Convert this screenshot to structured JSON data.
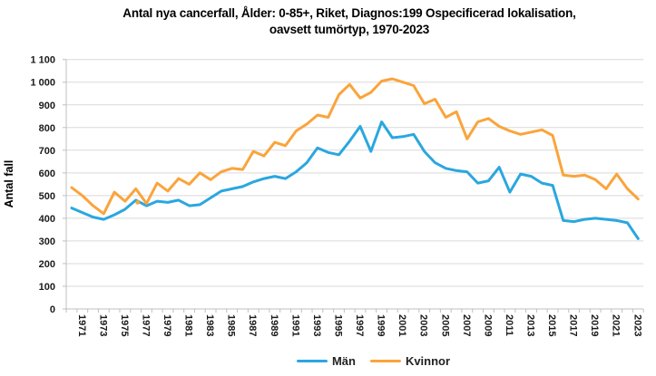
{
  "title": {
    "line1": "Antal nya cancerfall, Ålder: 0-85+, Riket, Diagnos:199 Ospecificerad lokalisation,",
    "line2": "oavsett tumörtyp, 1970-2023"
  },
  "y_axis": {
    "title": "Antal fall",
    "ticks": [
      "0",
      "100",
      "200",
      "300",
      "400",
      "500",
      "600",
      "700",
      "800",
      "900",
      "1 000",
      "1 100"
    ],
    "min": 0,
    "max": 1100,
    "step": 100
  },
  "x_axis": {
    "tick_labels": [
      "1971",
      "1973",
      "1975",
      "1977",
      "1979",
      "1981",
      "1983",
      "1985",
      "1987",
      "1989",
      "1991",
      "1993",
      "1995",
      "1997",
      "1999",
      "2001",
      "2003",
      "2005",
      "2007",
      "2009",
      "2011",
      "2013",
      "2015",
      "2017",
      "2019",
      "2021",
      "2023"
    ]
  },
  "legend": {
    "items": [
      {
        "label": "Män",
        "color": "#2AA7DF"
      },
      {
        "label": "Kvinnor",
        "color": "#FAA43B"
      }
    ],
    "position": "bottom"
  },
  "colors": {
    "man_line": "#2AA7DF",
    "kvinnor_line": "#FAA43B",
    "gridline": "#D9D9D9",
    "axis": "#BFBFBF",
    "text": "#1a1a1a"
  },
  "annotations": {
    "stray_marker": {
      "series": "Kvinnor",
      "year": 1976,
      "value": 470,
      "color": "#FAA43B"
    }
  },
  "chart_data": {
    "type": "line",
    "title": "Antal nya cancerfall, Ålder: 0-85+, Riket, Diagnos:199 Ospecificerad lokalisation, oavsett tumörtyp, 1970-2023",
    "xlabel": "",
    "ylabel": "Antal fall",
    "ylim": [
      0,
      1100
    ],
    "grid": true,
    "legend_position": "bottom",
    "x": [
      1970,
      1971,
      1972,
      1973,
      1974,
      1975,
      1976,
      1977,
      1978,
      1979,
      1980,
      1981,
      1982,
      1983,
      1984,
      1985,
      1986,
      1987,
      1988,
      1989,
      1990,
      1991,
      1992,
      1993,
      1994,
      1995,
      1996,
      1997,
      1998,
      1999,
      2000,
      2001,
      2002,
      2003,
      2004,
      2005,
      2006,
      2007,
      2008,
      2009,
      2010,
      2011,
      2012,
      2013,
      2014,
      2015,
      2016,
      2017,
      2018,
      2019,
      2020,
      2021,
      2022,
      2023
    ],
    "series": [
      {
        "name": "Män",
        "color": "#2AA7DF",
        "values": [
          445,
          425,
          405,
          395,
          415,
          440,
          480,
          455,
          475,
          470,
          480,
          455,
          460,
          490,
          520,
          530,
          540,
          560,
          575,
          585,
          575,
          605,
          645,
          710,
          690,
          680,
          740,
          805,
          695,
          825,
          755,
          760,
          770,
          695,
          645,
          620,
          610,
          605,
          555,
          565,
          625,
          515,
          595,
          585,
          555,
          545,
          390,
          385,
          395,
          400,
          395,
          390,
          380,
          310
        ]
      },
      {
        "name": "Kvinnor",
        "color": "#FAA43B",
        "values": [
          535,
          500,
          455,
          420,
          515,
          475,
          530,
          465,
          555,
          520,
          575,
          550,
          600,
          570,
          605,
          620,
          615,
          695,
          675,
          735,
          720,
          785,
          815,
          855,
          845,
          945,
          990,
          930,
          955,
          1005,
          1015,
          1000,
          985,
          905,
          925,
          845,
          870,
          750,
          825,
          840,
          805,
          785,
          770,
          780,
          790,
          765,
          590,
          585,
          590,
          570,
          530,
          595,
          530,
          485
        ]
      }
    ]
  }
}
